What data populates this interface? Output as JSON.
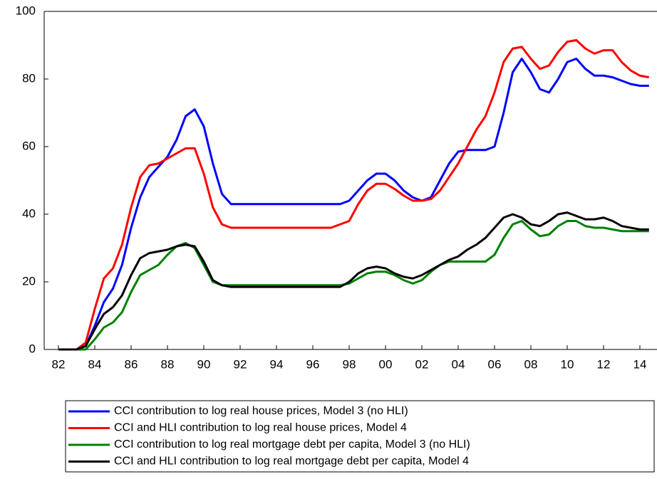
{
  "chart_data": {
    "type": "line",
    "categories": [
      "82",
      null,
      null,
      null,
      "84",
      null,
      null,
      null,
      "86",
      null,
      null,
      null,
      "88",
      null,
      null,
      null,
      "90",
      null,
      null,
      null,
      "92",
      null,
      null,
      null,
      "94",
      null,
      null,
      null,
      "96",
      null,
      null,
      null,
      "98",
      null,
      null,
      null,
      "00",
      null,
      null,
      null,
      "02",
      null,
      null,
      null,
      "04",
      null,
      null,
      null,
      "06",
      null,
      null,
      null,
      "08",
      null,
      null,
      null,
      "10",
      null,
      null,
      null,
      "12",
      null,
      null,
      null,
      "14",
      null
    ],
    "series": [
      {
        "name": "CCI contribution to log real house prices, Model 3 (no HLI)",
        "color": "#0000ff",
        "values": [
          0,
          0,
          0,
          1,
          7,
          14,
          18,
          25,
          36,
          45,
          51,
          54,
          57,
          62,
          69,
          71,
          66,
          55,
          46,
          43,
          43,
          43,
          43,
          43,
          43,
          43,
          43,
          43,
          43,
          43,
          43,
          43,
          44,
          47,
          50,
          52,
          52,
          50,
          47,
          45,
          44,
          45,
          50,
          55,
          58.5,
          59,
          59,
          59,
          60,
          70,
          82,
          86,
          82,
          77,
          76,
          80,
          85,
          86,
          83,
          81,
          81,
          80.5,
          79.5,
          78.5,
          78,
          78
        ]
      },
      {
        "name": "CCI and HLI contribution to log real house prices, Model 4",
        "color": "#ff0000",
        "values": [
          0,
          0,
          0,
          2,
          12,
          21,
          24,
          31,
          42,
          51,
          54.5,
          55,
          56.5,
          58,
          59.5,
          59.5,
          52,
          42,
          37,
          36,
          36,
          36,
          36,
          36,
          36,
          36,
          36,
          36,
          36,
          36,
          36,
          37,
          38,
          43,
          47,
          49,
          49,
          47.5,
          45.5,
          44,
          44,
          44.5,
          47,
          51,
          55,
          60,
          65,
          69,
          76,
          85,
          89,
          89.5,
          86,
          83,
          84,
          88,
          91,
          91.5,
          89,
          87.5,
          88.5,
          88.5,
          85,
          82.5,
          81,
          80.5
        ]
      },
      {
        "name": "CCI contribution to log real mortgage debt per capita, Model 3 (no HLI)",
        "color": "#008000",
        "values": [
          0,
          0,
          0,
          0,
          3,
          6.5,
          8,
          11,
          17,
          22,
          23.5,
          25,
          28,
          30.5,
          31.5,
          30,
          25,
          20,
          19,
          19,
          19,
          19,
          19,
          19,
          19,
          19,
          19,
          19,
          19,
          19,
          19,
          19,
          19.5,
          21,
          22.5,
          23,
          23,
          22,
          20.5,
          19.5,
          20.5,
          23,
          25,
          26,
          26,
          26,
          26,
          26,
          28,
          33,
          37,
          38,
          35.5,
          33.5,
          34,
          36.5,
          38,
          38,
          36.5,
          36,
          36,
          35.5,
          35,
          35,
          35,
          35
        ]
      },
      {
        "name": "CCI and HLI contribution to log real mortgage debt per capita, Model 4",
        "color": "#000000",
        "values": [
          0,
          0,
          0,
          1,
          6,
          10.5,
          12.5,
          16,
          22,
          27,
          28.5,
          29,
          29.5,
          30.5,
          31,
          30.5,
          26,
          20.5,
          19,
          18.5,
          18.5,
          18.5,
          18.5,
          18.5,
          18.5,
          18.5,
          18.5,
          18.5,
          18.5,
          18.5,
          18.5,
          18.5,
          20,
          22.5,
          24,
          24.5,
          24,
          22.5,
          21.5,
          21,
          22,
          23.5,
          25,
          26.5,
          27.5,
          29.5,
          31,
          33,
          36,
          39,
          40,
          39,
          37,
          36.5,
          38,
          40,
          40.5,
          39.5,
          38.5,
          38.5,
          39,
          38,
          36.5,
          36,
          35.5,
          35.5
        ]
      }
    ],
    "ylim": [
      0,
      100
    ],
    "yticks": [
      0,
      20,
      40,
      60,
      80,
      100
    ],
    "grid": false,
    "legend": "bottom"
  }
}
